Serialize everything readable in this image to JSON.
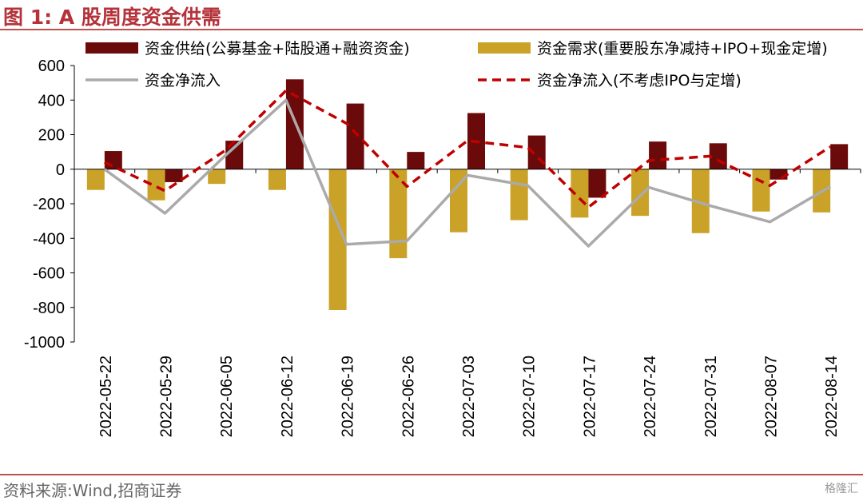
{
  "figure_title": "图 1:  A 股周度资金供需",
  "source": "资料来源:Wind,招商证券",
  "watermark": "格隆汇",
  "colors": {
    "supply": "#6b0a0a",
    "demand": "#c9a227",
    "net": "#aaaaaa",
    "net_ex": "#c00000",
    "accent_rule": "#c0504d"
  },
  "chart_data": {
    "type": "bar",
    "categories": [
      "2022-05-22",
      "2022-05-29",
      "2022-06-05",
      "2022-06-12",
      "2022-06-19",
      "2022-06-26",
      "2022-07-03",
      "2022-07-10",
      "2022-07-17",
      "2022-07-24",
      "2022-07-31",
      "2022-08-07",
      "2022-08-14"
    ],
    "ylim": [
      -1000,
      600
    ],
    "yticks": [
      "600",
      "400",
      "200",
      "0",
      "-200",
      "-400",
      "-600",
      "-800",
      "-1000"
    ],
    "grid": false,
    "legend_position": "top",
    "series": [
      {
        "name": "资金供给(公募基金+陆股通+融资资金)",
        "type": "bar",
        "values": [
          105,
          -75,
          165,
          520,
          380,
          100,
          325,
          195,
          -165,
          160,
          150,
          -60,
          145
        ]
      },
      {
        "name": "资金需求(重要股东净减持+IPO+现金定增)",
        "type": "bar",
        "values": [
          -120,
          -180,
          -85,
          -120,
          -815,
          -515,
          -365,
          -295,
          -280,
          -270,
          -370,
          -245,
          -250
        ]
      },
      {
        "name": "资金净流入",
        "type": "line",
        "values": [
          0,
          -255,
          80,
          400,
          -435,
          -415,
          -35,
          -95,
          -445,
          -105,
          -210,
          -305,
          -100
        ]
      },
      {
        "name": "资金净流入(不考虑IPO与定增)",
        "type": "line",
        "dashed": true,
        "values": [
          40,
          -125,
          110,
          455,
          265,
          -100,
          165,
          125,
          -220,
          50,
          75,
          -95,
          130
        ]
      }
    ]
  }
}
